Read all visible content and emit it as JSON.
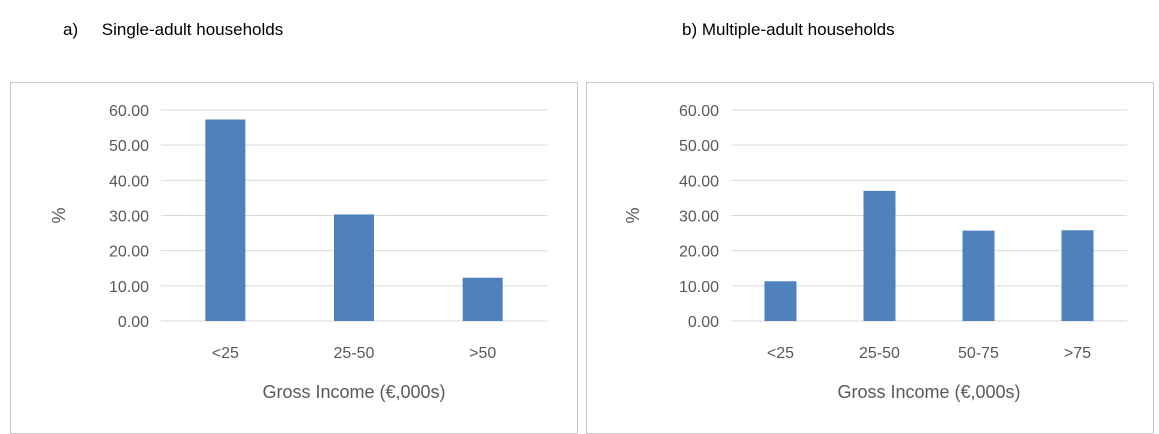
{
  "chart_data": [
    {
      "type": "bar",
      "panel_label": "a)",
      "title": "Single-adult households",
      "xlabel": "Gross Income (€,000s)",
      "ylabel": "%",
      "ylim": [
        0,
        60
      ],
      "yticks": [
        0,
        10,
        20,
        30,
        40,
        50,
        60
      ],
      "ytick_labels": [
        "0.00",
        "10.00",
        "20.00",
        "30.00",
        "40.00",
        "50.00",
        "60.00"
      ],
      "categories": [
        "<25",
        "25-50",
        ">50"
      ],
      "values": [
        57.3,
        30.3,
        12.3
      ],
      "grid": true,
      "bar_color": "#4f81bd"
    },
    {
      "type": "bar",
      "title": "b) Multiple-adult households",
      "xlabel": "Gross Income (€,000s)",
      "ylabel": "%",
      "ylim": [
        0,
        60
      ],
      "yticks": [
        0,
        10,
        20,
        30,
        40,
        50,
        60
      ],
      "ytick_labels": [
        "0.00",
        "10.00",
        "20.00",
        "30.00",
        "40.00",
        "50.00",
        "60.00"
      ],
      "categories": [
        "<25",
        "25-50",
        "50-75",
        ">75"
      ],
      "values": [
        11.3,
        37.0,
        25.7,
        25.8
      ],
      "grid": true,
      "bar_color": "#4f81bd"
    }
  ]
}
